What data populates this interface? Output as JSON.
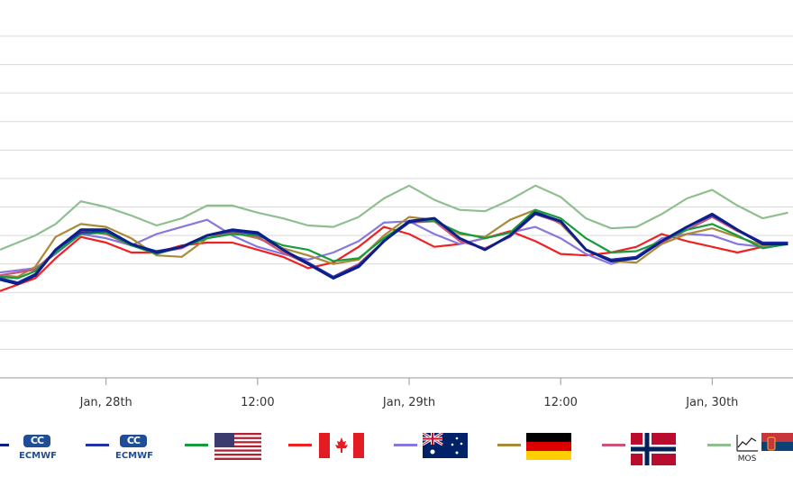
{
  "chart_data": {
    "type": "line",
    "title": "",
    "xlabel": "",
    "ylabel": "",
    "grid": true,
    "legend_position": "bottom",
    "x_tick_labels": [
      "Jan, 28th",
      "12:00",
      "Jan, 29th",
      "12:00",
      "Jan, 30th"
    ],
    "x_ticks": [
      6,
      12,
      18,
      24,
      30
    ],
    "x_range": [
      1.8,
      33.2
    ],
    "y_range": [
      0,
      12
    ],
    "y_gridlines": [
      1,
      2,
      3,
      4,
      5,
      6,
      7,
      8,
      9,
      10,
      11,
      12
    ],
    "series": [
      {
        "name": "ECMWF",
        "color": "#0b1f8a",
        "x": [
          1.8,
          2.5,
          3.2,
          4,
          5,
          6,
          7,
          8,
          9,
          10,
          11,
          12,
          13,
          14,
          15,
          16,
          17,
          18,
          19,
          20,
          21,
          22,
          23,
          24,
          25,
          26,
          27,
          28,
          29,
          30,
          31,
          32,
          33
        ],
        "y": [
          3.45,
          3.3,
          3.6,
          4.5,
          5.2,
          5.2,
          4.7,
          4.4,
          4.6,
          5,
          5.2,
          5.1,
          4.5,
          4,
          3.5,
          3.9,
          4.8,
          5.5,
          5.6,
          4.9,
          4.5,
          5,
          5.8,
          5.5,
          4.5,
          4.1,
          4.2,
          4.8,
          5.3,
          5.75,
          5.2,
          4.7,
          4.7
        ]
      },
      {
        "name": "ECMWF",
        "color": "#2233aa",
        "x": [
          1.8,
          2.5,
          3.2,
          4,
          5,
          6,
          7,
          8,
          9,
          10,
          11,
          12,
          13,
          14,
          15,
          16,
          17,
          18,
          19,
          20,
          21,
          22,
          23,
          24,
          25,
          26,
          27,
          28,
          29,
          30,
          31,
          32,
          33
        ],
        "y": [
          3.5,
          3.35,
          3.65,
          4.5,
          5.1,
          5.15,
          4.7,
          4.45,
          4.6,
          5,
          5.15,
          5.05,
          4.5,
          4.05,
          3.55,
          3.95,
          4.8,
          5.45,
          5.6,
          4.9,
          4.5,
          5,
          5.75,
          5.5,
          4.5,
          4.15,
          4.25,
          4.8,
          5.3,
          5.7,
          5.2,
          4.75,
          4.75
        ]
      },
      {
        "name": "USA",
        "color": "#169c3a",
        "x": [
          1.8,
          2.5,
          3.2,
          4,
          5,
          6,
          7,
          8,
          9,
          10,
          11,
          12,
          13,
          14,
          15,
          16,
          17,
          18,
          19,
          20,
          21,
          22,
          23,
          24,
          25,
          26,
          27,
          28,
          29,
          30,
          31,
          32,
          33
        ],
        "y": [
          3.55,
          3.5,
          3.75,
          4.4,
          5.05,
          5.1,
          4.65,
          4.35,
          4.6,
          4.9,
          5.05,
          5,
          4.65,
          4.5,
          4.1,
          4.2,
          4.9,
          5.5,
          5.5,
          5.1,
          4.9,
          5.1,
          5.9,
          5.6,
          4.9,
          4.4,
          4.45,
          4.8,
          5.2,
          5.4,
          5,
          4.55,
          4.7
        ]
      },
      {
        "name": "Canada",
        "color": "#ee2222",
        "x": [
          1.8,
          3.2,
          4,
          5,
          6,
          7,
          8,
          9,
          10,
          11,
          12,
          13,
          14,
          15,
          16,
          17,
          18,
          19,
          20,
          21,
          22,
          23,
          24,
          25,
          26,
          27,
          28,
          29,
          30,
          31,
          32,
          33
        ],
        "y": [
          3.05,
          3.5,
          4.2,
          4.95,
          4.75,
          4.4,
          4.4,
          4.65,
          4.75,
          4.75,
          4.5,
          4.25,
          3.85,
          4.05,
          4.6,
          5.3,
          5.05,
          4.6,
          4.7,
          4.9,
          5.15,
          4.8,
          4.35,
          4.3,
          4.4,
          4.6,
          5.05,
          4.8,
          4.6,
          4.4,
          4.6,
          4.7
        ]
      },
      {
        "name": "Australia",
        "color": "#8877dd",
        "x": [
          1.8,
          3.2,
          4,
          5,
          6,
          7,
          8,
          9,
          10,
          11,
          12,
          13,
          14,
          15,
          16,
          17,
          18,
          19,
          20,
          21,
          22,
          23,
          24,
          25,
          26,
          27,
          28,
          29,
          30,
          31,
          32,
          33
        ],
        "y": [
          3.7,
          3.85,
          4.35,
          5.05,
          4.9,
          4.65,
          5.05,
          5.3,
          5.55,
          5,
          4.6,
          4.35,
          4.15,
          4.4,
          4.8,
          5.45,
          5.5,
          5.05,
          4.7,
          4.9,
          5.1,
          5.3,
          4.9,
          4.35,
          4,
          4.25,
          4.9,
          5.05,
          5,
          4.7,
          4.6,
          4.7
        ]
      },
      {
        "name": "Germany",
        "color": "#a88a3a",
        "x": [
          1.8,
          2.5,
          3.2,
          4,
          5,
          6,
          7,
          8,
          9,
          10,
          11,
          12,
          13,
          14,
          15,
          16,
          17,
          18,
          19,
          20,
          21,
          22,
          23,
          24,
          25,
          26,
          27,
          28,
          29,
          30,
          31,
          32,
          33
        ],
        "y": [
          3.6,
          3.55,
          3.9,
          4.95,
          5.4,
          5.3,
          4.9,
          4.3,
          4.25,
          4.9,
          5.1,
          4.9,
          4.55,
          4.3,
          4.0,
          4.15,
          5.0,
          5.65,
          5.55,
          5.05,
          4.95,
          5.55,
          5.9,
          5.4,
          4.5,
          4.1,
          4.05,
          4.7,
          5.05,
          5.25,
          4.95,
          4.65,
          4.75
        ]
      },
      {
        "name": "Norway",
        "color": "#cc5577",
        "x": [
          1.8,
          3.2,
          4,
          5,
          6,
          7,
          8,
          9,
          10,
          11,
          12,
          13,
          14,
          15,
          16,
          17,
          18,
          19,
          20,
          21,
          22,
          23,
          24,
          25,
          26,
          27,
          28,
          29,
          30,
          31,
          32,
          33
        ],
        "y": [
          3.6,
          3.8,
          4.45,
          5.15,
          5.05,
          4.65,
          4.4,
          4.55,
          5,
          5.1,
          4.95,
          4.4,
          4,
          3.55,
          4,
          4.8,
          5.45,
          5.5,
          4.8,
          4.55,
          4.95,
          5.75,
          5.45,
          4.5,
          4.15,
          4.25,
          4.75,
          5.2,
          5.65,
          5.15,
          4.75,
          4.75
        ]
      },
      {
        "name": "MOS",
        "color": "#8fbf8f",
        "x": [
          1.8,
          2.5,
          3.2,
          4,
          5,
          6,
          7,
          8,
          9,
          10,
          11,
          12,
          13,
          14,
          15,
          16,
          17,
          18,
          19,
          20,
          21,
          22,
          23,
          24,
          25,
          26,
          27,
          28,
          29,
          30,
          31,
          32,
          33
        ],
        "y": [
          4.5,
          4.75,
          5.0,
          5.4,
          6.2,
          6.0,
          5.7,
          5.35,
          5.6,
          6.05,
          6.05,
          5.8,
          5.6,
          5.35,
          5.3,
          5.65,
          6.3,
          6.75,
          6.25,
          5.9,
          5.85,
          6.25,
          6.75,
          6.35,
          5.6,
          5.25,
          5.3,
          5.75,
          6.3,
          6.6,
          6.05,
          5.6,
          5.8
        ]
      }
    ]
  },
  "legend": {
    "items": [
      {
        "color": "#0b1f8a",
        "icon": "ecmwf-logo",
        "logo_text": "ECMWF"
      },
      {
        "color": "#2233aa",
        "icon": "ecmwf-logo",
        "logo_text": "ECMWF"
      },
      {
        "color": "#169c3a",
        "icon": "usa-flag"
      },
      {
        "color": "#ee2222",
        "icon": "canada-flag"
      },
      {
        "color": "#8877dd",
        "icon": "australia-flag"
      },
      {
        "color": "#a88a3a",
        "icon": "germany-flag"
      },
      {
        "color": "#cc5577",
        "icon": "norway-flag"
      },
      {
        "color": "#8fbf8f",
        "icon": "mos-chart",
        "logo_text": "MOS"
      },
      {
        "color": "#8fbf8f",
        "icon": "serbia-flag"
      }
    ]
  }
}
